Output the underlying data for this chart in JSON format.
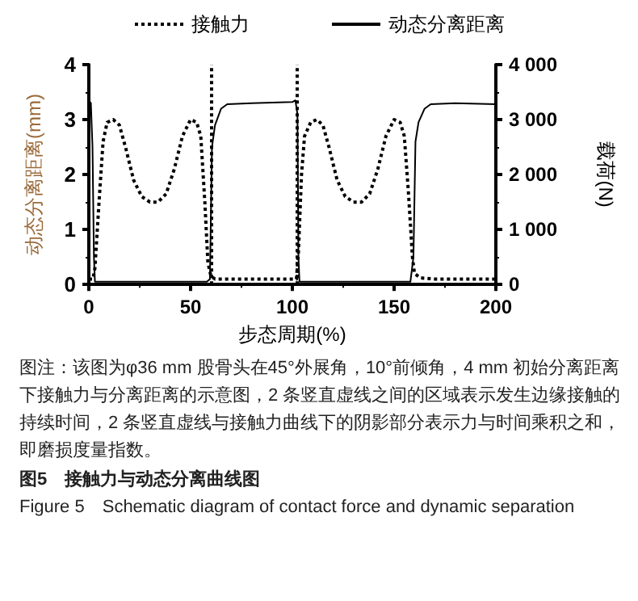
{
  "chart_data": {
    "type": "line",
    "title": "图5　接触力与动态分离曲线图",
    "subtitle": "Figure 5　Schematic diagram of contact force and dynamic separation",
    "xlabel": "步态周期(%)",
    "ylabel": "动态分离距离(mm)",
    "y2label": "载荷(N)",
    "xlim": [
      0,
      200
    ],
    "xticks": [
      0,
      50,
      100,
      150,
      200
    ],
    "ylim": [
      0,
      4
    ],
    "yticks": [
      0,
      1,
      2,
      3,
      4
    ],
    "y2lim": [
      0,
      4000
    ],
    "y2ticks": [
      0,
      {
        "value": 1000,
        "label": "1 000"
      },
      {
        "value": 2000,
        "label": "2 000"
      },
      {
        "value": 3000,
        "label": "3 000"
      },
      {
        "value": 4000,
        "label": "4 000"
      }
    ],
    "legend": "top",
    "grid": false,
    "marker": "none",
    "series": [
      {
        "name": "接触力",
        "color": "#000000",
        "axis": "y2",
        "line_style": "dotted",
        "x": [
          0,
          2,
          3,
          5,
          7,
          9,
          12,
          15,
          18,
          22,
          26,
          30,
          34,
          38,
          42,
          46,
          50,
          53,
          55,
          57,
          58.5,
          60,
          62,
          80,
          100,
          102,
          103,
          104.5,
          106,
          109,
          112,
          115,
          118,
          122,
          126,
          130,
          134,
          138,
          142,
          146,
          150,
          153,
          155,
          157,
          159,
          160,
          163,
          170,
          200
        ],
        "values": [
          100,
          100,
          300,
          1500,
          2600,
          2950,
          3000,
          2900,
          2500,
          1900,
          1600,
          1500,
          1500,
          1650,
          2100,
          2700,
          3000,
          2950,
          2700,
          1500,
          400,
          150,
          100,
          100,
          100,
          100,
          600,
          2000,
          2700,
          2950,
          3000,
          2900,
          2500,
          1900,
          1600,
          1500,
          1500,
          1650,
          2100,
          2700,
          3000,
          2950,
          2700,
          1700,
          500,
          200,
          120,
          100,
          100
        ]
      },
      {
        "name": "动态分离距离",
        "color": "#000000",
        "line_style": "solid",
        "x": [
          0,
          1,
          1.8,
          2.5,
          3,
          58,
          59.5,
          60.5,
          62,
          65,
          68,
          80,
          100,
          101.5,
          102.5,
          103,
          103.5,
          158,
          159.5,
          160.5,
          162,
          165,
          168,
          180,
          200
        ],
        "values": [
          3.35,
          3.3,
          2.5,
          0.5,
          0.05,
          0.05,
          0.1,
          2.5,
          2.9,
          3.2,
          3.28,
          3.3,
          3.32,
          3.35,
          3.1,
          0.5,
          0.05,
          0.05,
          0.5,
          2.6,
          2.95,
          3.2,
          3.28,
          3.3,
          3.28
        ]
      }
    ],
    "ref_lines": [
      {
        "axis": "x",
        "value": 60,
        "line_style": "dotted",
        "color": "#000000"
      },
      {
        "axis": "x",
        "value": 102,
        "line_style": "dotted",
        "color": "#000000"
      }
    ],
    "annotations": [
      "图注：该图为φ36 mm 股骨头在45°外展角，10°前倾角，4 mm 初始分离距离下接触力与分离距离的示意图，2 条竖直虚线之间的区域表示发生边缘接触的持续时间，2 条竖直虚线与接触力曲线下的阴影部分表示力与时间乘积之和，即磨损度量指数。"
    ]
  }
}
